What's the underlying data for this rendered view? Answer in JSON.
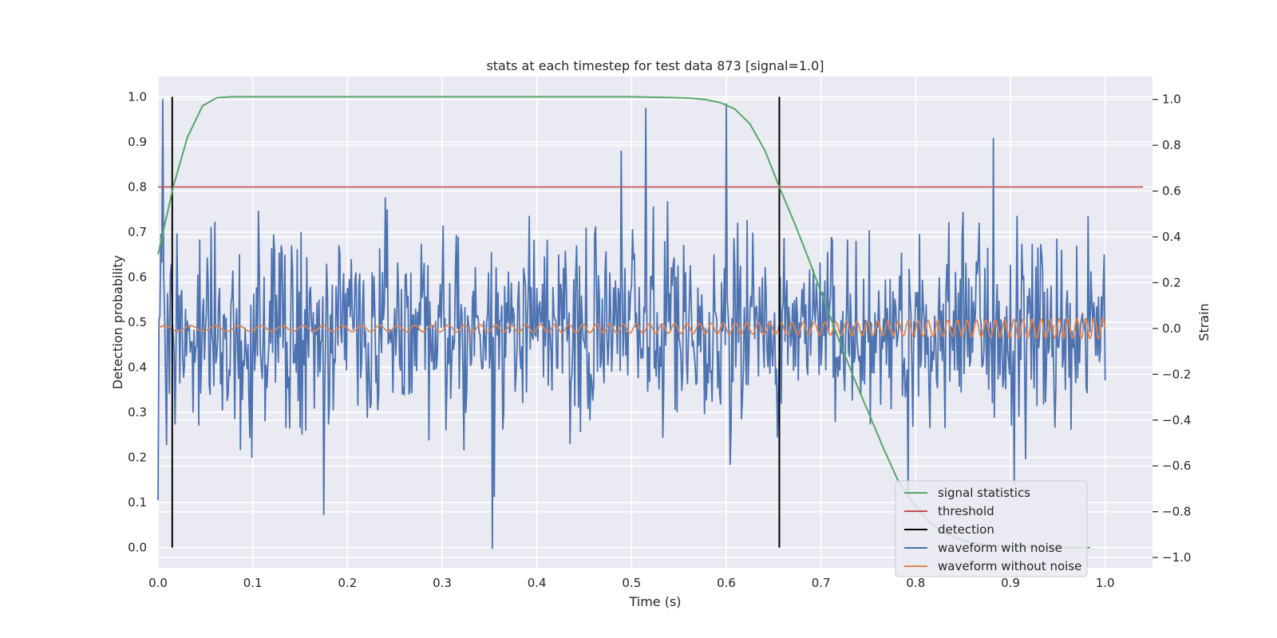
{
  "chart_data": {
    "type": "line",
    "title": "stats at each timestep for test data 873 [signal=1.0]",
    "xlabel": "Time (s)",
    "ylabel_left": "Detection probability",
    "ylabel_right": "Strain",
    "xlim": [
      0.0,
      1.05
    ],
    "ylim_left": [
      -0.045,
      1.045
    ],
    "ylim_right": [
      -1.045,
      1.1
    ],
    "xticks": [
      "0.0",
      "0.1",
      "0.2",
      "0.3",
      "0.4",
      "0.5",
      "0.6",
      "0.7",
      "0.8",
      "0.9",
      "1.0"
    ],
    "yticks_left": [
      "0.0",
      "0.1",
      "0.2",
      "0.3",
      "0.4",
      "0.5",
      "0.6",
      "0.7",
      "0.8",
      "0.9",
      "1.0"
    ],
    "yticks_right": [
      "−1.0",
      "−0.8",
      "−0.6",
      "−0.4",
      "−0.2",
      "0.0",
      "0.2",
      "0.4",
      "0.6",
      "0.8",
      "1.0"
    ],
    "grid": true,
    "legend_position": "bottom-right",
    "legend": [
      {
        "label": "signal statistics",
        "color": "#55a868"
      },
      {
        "label": "threshold",
        "color": "#c44e52"
      },
      {
        "label": "detection",
        "color": "#000000"
      },
      {
        "label": "waveform with noise",
        "color": "#4c72b0"
      },
      {
        "label": "waveform without noise",
        "color": "#dd8452"
      }
    ],
    "signal_statistics": {
      "color": "#55a868",
      "axis": "left",
      "x": [
        0.0,
        0.016,
        0.031,
        0.047,
        0.062,
        0.078,
        0.094,
        0.11,
        0.2,
        0.3,
        0.4,
        0.5,
        0.547,
        0.562,
        0.578,
        0.594,
        0.609,
        0.625,
        0.641,
        0.656,
        0.672,
        0.687,
        0.703,
        0.719,
        0.734,
        0.75,
        0.766,
        0.781,
        0.797,
        0.812,
        0.828,
        0.844,
        0.859,
        0.875,
        0.891,
        0.906,
        0.922,
        0.937,
        0.953,
        0.969,
        0.984
      ],
      "y": [
        0.65,
        0.8,
        0.91,
        0.98,
        0.998,
        1.0,
        1.0,
        1.0,
        1.0,
        1.0,
        1.0,
        1.0,
        0.998,
        0.997,
        0.994,
        0.987,
        0.973,
        0.94,
        0.88,
        0.8,
        0.72,
        0.64,
        0.55,
        0.46,
        0.38,
        0.3,
        0.22,
        0.15,
        0.1,
        0.06,
        0.035,
        0.02,
        0.01,
        0.005,
        0.003,
        0.002,
        0.001,
        0.001,
        0.0,
        0.0,
        0.0
      ]
    },
    "threshold": {
      "color": "#c44e52",
      "axis": "left",
      "y": 0.8,
      "x_range": [
        0.0,
        1.04
      ]
    },
    "detections": {
      "color": "#000000",
      "axis": "left",
      "x": [
        0.015,
        0.656
      ],
      "y_range": [
        0.0,
        1.0
      ]
    },
    "waveform_without_noise": {
      "color": "#dd8452",
      "axis": "right",
      "x_range": [
        0.0,
        1.0
      ],
      "amplitude_start": 0.012,
      "amplitude_end": 0.045,
      "frequency_start_hz": 35,
      "frequency_end_hz": 110
    },
    "waveform_with_noise": {
      "color": "#4c72b0",
      "axis": "right",
      "x_range": [
        0.0,
        1.0
      ],
      "samples": 1000,
      "noise_std": 0.22,
      "peaks": [
        {
          "x": 0.005,
          "y": 1.0
        },
        {
          "x": 0.353,
          "y": -0.96
        },
        {
          "x": 0.515,
          "y": 0.96
        },
        {
          "x": 0.6,
          "y": 0.98
        },
        {
          "x": 0.882,
          "y": 0.83
        },
        {
          "x": 0.0,
          "y": -0.75
        }
      ]
    }
  }
}
